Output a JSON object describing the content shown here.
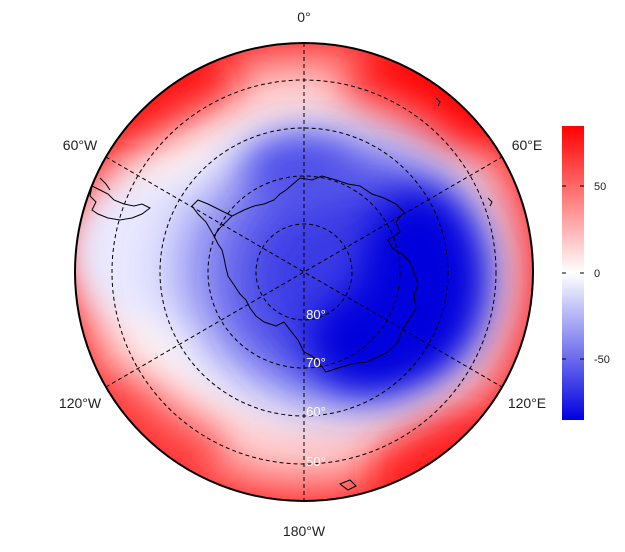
{
  "map": {
    "projection": "south-polar-stereographic",
    "longitude_labels": {
      "top": "0°",
      "upper_left": "60°W",
      "upper_right": "60°E",
      "lower_left": "120°W",
      "lower_right": "120°E",
      "bottom": "180°W"
    },
    "latitude_labels": [
      "80°",
      "70°",
      "60°",
      "50°"
    ],
    "graticule_style": "dashed",
    "coastlines": "black",
    "field_description": "anomaly field with negative values over Antarctica and the Indian/Pacific sector, positive ring at mid-latitudes"
  },
  "colorbar": {
    "ticks": [
      "50",
      "0",
      "-50"
    ],
    "tick_values": [
      50,
      0,
      -50
    ],
    "range": [
      -85,
      85
    ],
    "colors": {
      "low": "#0000e0",
      "mid": "#ffffff",
      "high": "#ff0000"
    }
  }
}
